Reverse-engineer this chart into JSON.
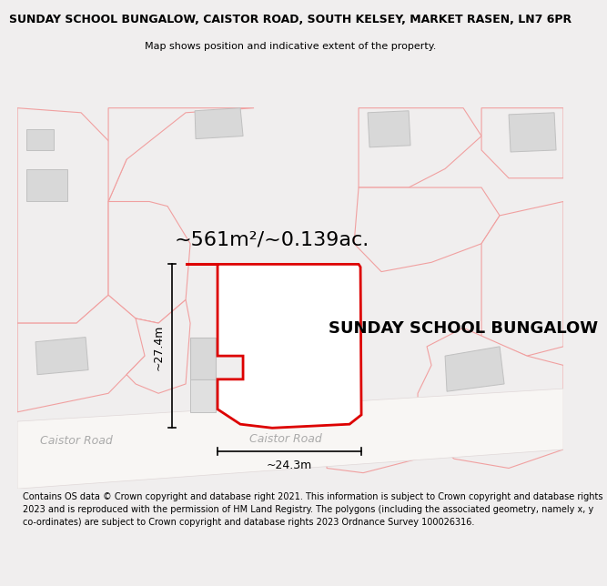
{
  "title": "SUNDAY SCHOOL BUNGALOW, CAISTOR ROAD, SOUTH KELSEY, MARKET RASEN, LN7 6PR",
  "subtitle": "Map shows position and indicative extent of the property.",
  "property_label": "SUNDAY SCHOOL BUNGALOW",
  "area_label": "~561m²/~0.139ac.",
  "dim_h_label": "~24.3m",
  "dim_v_label": "~27.4m",
  "road_label_left": "Caistor Road",
  "road_label_center": "Caistor Road",
  "copyright_text": "Contains OS data © Crown copyright and database right 2021. This information is subject to Crown copyright and database rights 2023 and is reproduced with the permission of HM Land Registry. The polygons (including the associated geometry, namely x, y co-ordinates) are subject to Crown copyright and database rights 2023 Ordnance Survey 100026316.",
  "fig_bg": "#f0eeee",
  "map_bg": "#ffffff",
  "main_ec": "#dd0000",
  "main_fc": "#ffffff",
  "other_ec": "#f0a0a0",
  "other_fc": "#f0eeee",
  "building_fc": "#d8d8d8",
  "building_ec": "#c0c0c0",
  "title_fs": 9,
  "subtitle_fs": 8,
  "area_fs": 16,
  "prop_label_fs": 13,
  "road_fs": 9,
  "dim_fs": 9,
  "copy_fs": 7
}
